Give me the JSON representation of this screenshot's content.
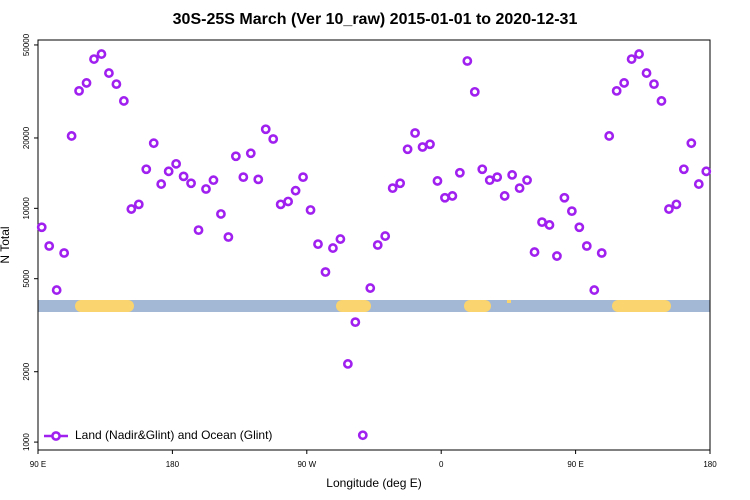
{
  "chart_data": {
    "type": "scatter",
    "title": "30S-25S March (Ver 10_raw)   2015-01-01 to 2020-12-31",
    "x_label": "Longitude (deg E)",
    "y_label": "N Total",
    "xlim": [
      90,
      540
    ],
    "xticks": [
      {
        "value": 90,
        "label": "90 E"
      },
      180,
      {
        "value": 270,
        "label": "90 W"
      },
      {
        "value": 360,
        "label": "0"
      },
      {
        "value": 450,
        "label": "90 E"
      },
      {
        "value": 540,
        "label": "180"
      }
    ],
    "ylim": [
      925,
      52500
    ],
    "yticks": [
      1000,
      2000,
      5000,
      10000,
      20000,
      50000
    ],
    "log_y": true,
    "legend": "bottom-left",
    "x": [
      92.5,
      97.5,
      102.5,
      107.5,
      112.5,
      117.5,
      122.5,
      127.5,
      132.5,
      137.5,
      142.5,
      147.5,
      152.5,
      157.5,
      162.5,
      167.5,
      172.5,
      177.5,
      182.5,
      187.5,
      192.5,
      197.5,
      202.5,
      207.5,
      212.5,
      217.5,
      222.5,
      227.5,
      232.5,
      237.5,
      242.5,
      247.5,
      252.5,
      257.5,
      262.5,
      267.5,
      272.5,
      277.5,
      282.5,
      287.5,
      292.5,
      297.5,
      302.5,
      307.5,
      312.5,
      317.5,
      322.5,
      327.5,
      332.5,
      337.5,
      342.5,
      347.5,
      352.5,
      357.5,
      362.5,
      367.5,
      372.5,
      377.5,
      382.5,
      387.5,
      392.5,
      397.5,
      402.5,
      407.5,
      412.5,
      417.5,
      422.5,
      427.5,
      432.5,
      437.5,
      442.5,
      447.5,
      452.5,
      457.5,
      462.5,
      467.5,
      472.5,
      477.5,
      482.5,
      487.5,
      492.5,
      497.5,
      502.5,
      507.5,
      512.5,
      517.5,
      522.5,
      527.5,
      532.5,
      537.5
    ],
    "series": [
      {
        "name": "Land (Nadir&Glint) and Ocean (Glint)",
        "color": "#a020f0",
        "values": [
          8300,
          6900,
          4470,
          6440,
          20400,
          31800,
          34400,
          43500,
          45700,
          37900,
          34000,
          28800,
          9930,
          10400,
          14700,
          19000,
          12700,
          14400,
          15500,
          13700,
          12800,
          8070,
          12100,
          13200,
          9460,
          7540,
          16700,
          13600,
          17200,
          13300,
          21800,
          19800,
          10400,
          10700,
          11900,
          13600,
          9840,
          7030,
          5340,
          6760,
          7390,
          2160,
          3260,
          1070,
          4560,
          6970,
          7610,
          12200,
          12800,
          17900,
          21000,
          18300,
          18800,
          13100,
          11100,
          11300,
          14200,
          42700,
          31500,
          14700,
          13200,
          13600,
          11300,
          13900,
          12200,
          13200,
          6500,
          8730,
          8490,
          6250,
          11100,
          9730,
          8300,
          6900,
          4470,
          6440,
          20400,
          31800,
          34400,
          43500,
          45700,
          37900,
          34000,
          28800,
          9930,
          10400,
          14700,
          19000,
          12700,
          14400
        ]
      }
    ]
  }
}
